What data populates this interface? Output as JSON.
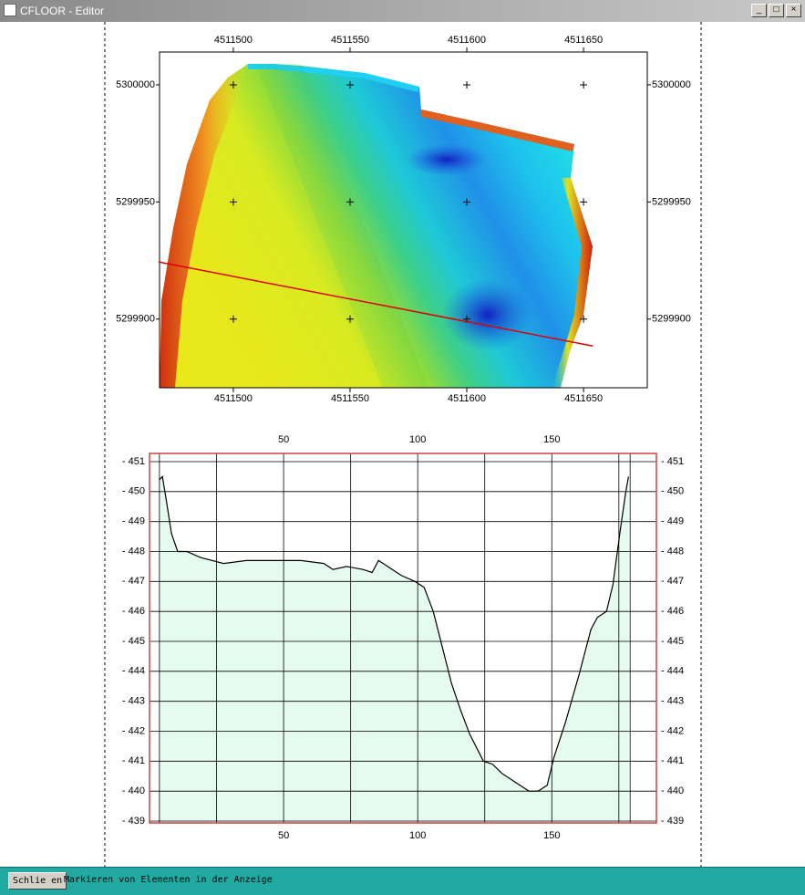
{
  "window": {
    "title": "CFLOOR - Editor"
  },
  "status_bar": {
    "button": "Schlie en",
    "message": "Markieren von Elementen in der Anzeige"
  },
  "chart_data": [
    {
      "type": "map",
      "xlim": [
        4511468.4,
        4511677.3
      ],
      "ylim": [
        5299870.7,
        5300014
      ],
      "xticks": [
        4511500,
        4511550,
        4511600,
        4511650
      ],
      "yticks": [
        5300000,
        5299950,
        5299900
      ],
      "profile_line": {
        "color": "#e00000",
        "x": [
          4511468,
          4511654
        ],
        "y": [
          5299924.4,
          5299888.5
        ]
      }
    },
    {
      "type": "line",
      "xlim": [
        0,
        189
      ],
      "ylim": [
        -439,
        -451
      ],
      "xticks": [
        50,
        100,
        150
      ],
      "xgrid": [
        25,
        50,
        75,
        100,
        125,
        150,
        175
      ],
      "profile_ends": [
        3.7,
        179.2
      ],
      "yticks": [
        {
          "value": -451,
          "label": "- 451"
        },
        {
          "value": -450,
          "label": "- 450"
        },
        {
          "value": -449,
          "label": "- 449"
        },
        {
          "value": -448,
          "label": "- 448"
        },
        {
          "value": -447,
          "label": "- 447"
        },
        {
          "value": -446,
          "label": "- 446"
        },
        {
          "value": -445,
          "label": "- 445"
        },
        {
          "value": -444,
          "label": "- 444"
        },
        {
          "value": -443,
          "label": "- 443"
        },
        {
          "value": -442,
          "label": "- 442"
        },
        {
          "value": -441,
          "label": "- 441"
        },
        {
          "value": -440,
          "label": "- 440"
        },
        {
          "value": -439,
          "label": "- 439"
        }
      ],
      "color": "#000000",
      "fill": "#e6fbef",
      "frame_color": "#d04040",
      "x": [
        3.7,
        4.8,
        6.1,
        8.2,
        10.5,
        13.9,
        19.0,
        27.6,
        36.1,
        46.3,
        56.5,
        65.0,
        68.4,
        73.5,
        79.6,
        83.0,
        85.4,
        88.8,
        93.9,
        99.0,
        102.4,
        105.8,
        109.2,
        112.6,
        116.0,
        119.4,
        124.5,
        127.9,
        131.3,
        136.4,
        141.5,
        144.9,
        148.3,
        150.7,
        155.1,
        160.2,
        164.6,
        167.0,
        170.4,
        172.8,
        175.5,
        177.6,
        178.6
      ],
      "values": [
        -450.4,
        -450.5,
        -449.8,
        -448.6,
        -448.0,
        -448.0,
        -447.8,
        -447.6,
        -447.7,
        -447.7,
        -447.7,
        -447.6,
        -447.4,
        -447.5,
        -447.4,
        -447.3,
        -447.7,
        -447.5,
        -447.2,
        -447.0,
        -446.8,
        -446.0,
        -444.8,
        -443.6,
        -442.7,
        -441.9,
        -441.0,
        -440.9,
        -440.6,
        -440.3,
        -440.0,
        -440.0,
        -440.2,
        -441.1,
        -442.3,
        -443.9,
        -445.4,
        -445.8,
        -446.0,
        -446.9,
        -448.7,
        -450.0,
        -450.5
      ]
    }
  ]
}
